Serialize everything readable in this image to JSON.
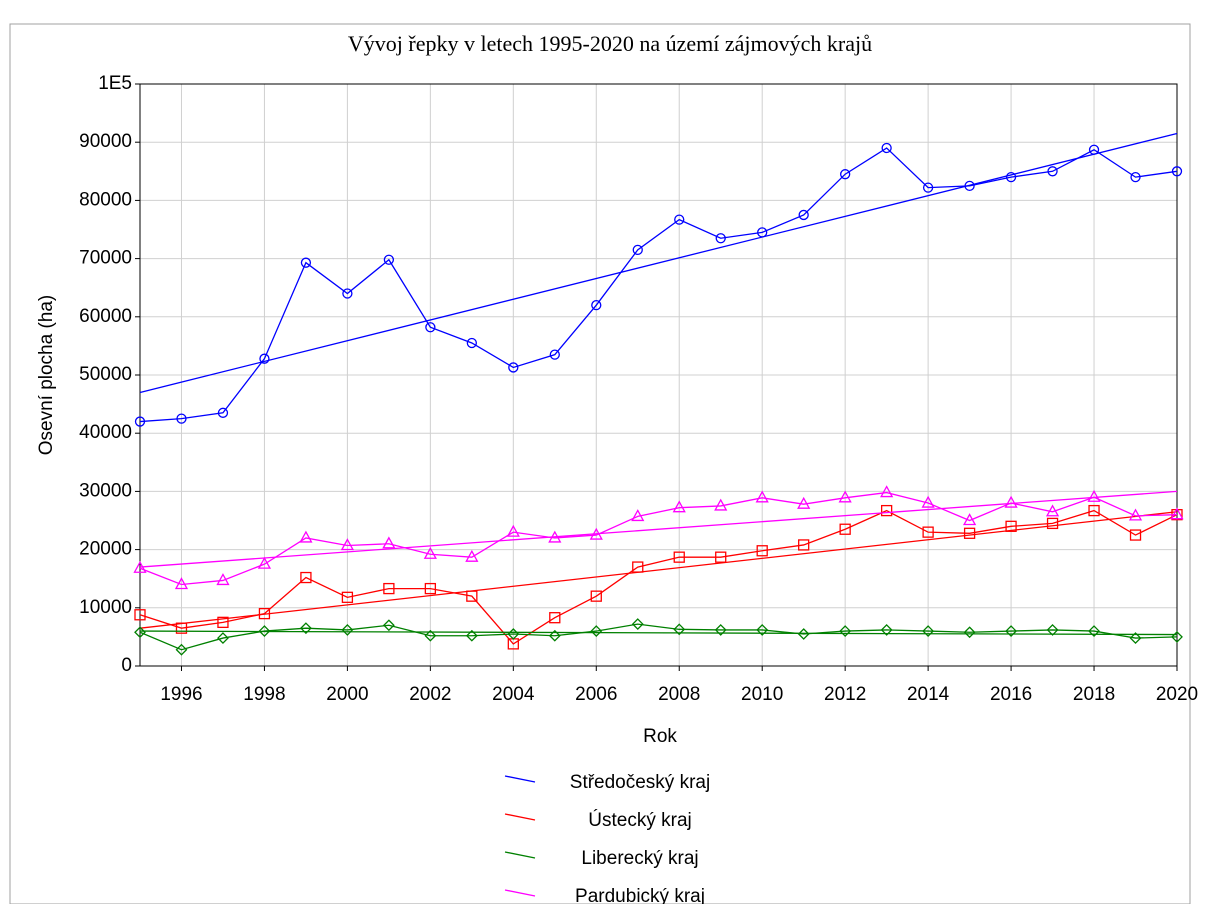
{
  "chart_data": {
    "type": "line",
    "title": "Vývoj řepky v letech 1995-2020 na území zájmových krajů",
    "xlabel": "Rok",
    "ylabel": "Osevní plocha (ha)",
    "x": [
      1995,
      1996,
      1997,
      1998,
      1999,
      2000,
      2001,
      2002,
      2003,
      2004,
      2005,
      2006,
      2007,
      2008,
      2009,
      2010,
      2011,
      2012,
      2013,
      2014,
      2015,
      2016,
      2017,
      2018,
      2019,
      2020
    ],
    "xlim": [
      1995,
      2020
    ],
    "xticks": [
      1996,
      1998,
      2000,
      2002,
      2004,
      2006,
      2008,
      2010,
      2012,
      2014,
      2016,
      2018,
      2020
    ],
    "ylim": [
      0,
      100000
    ],
    "yticks": [
      0,
      10000,
      20000,
      30000,
      40000,
      50000,
      60000,
      70000,
      80000,
      90000,
      {
        "value": 100000,
        "label": "1E5"
      }
    ],
    "grid": true,
    "legend": "bottom",
    "series": [
      {
        "name": "Středočeský kraj",
        "color": "#0000ff",
        "marker": "circle",
        "values": [
          42000,
          42500,
          43500,
          52800,
          69300,
          64000,
          69800,
          58200,
          55500,
          51300,
          53500,
          62000,
          71500,
          76700,
          73500,
          74500,
          77500,
          84500,
          89000,
          82200,
          82500,
          84000,
          85000,
          88700,
          84000,
          85000
        ],
        "trend": [
          47000,
          91500
        ]
      },
      {
        "name": "Ústecký kraj",
        "color": "#ff0000",
        "marker": "square",
        "values": [
          8800,
          6500,
          7500,
          9000,
          15200,
          11800,
          13300,
          13300,
          12000,
          3800,
          8300,
          12000,
          17000,
          18700,
          18700,
          19800,
          20800,
          23500,
          26700,
          23000,
          22800,
          24000,
          24500,
          26700,
          22500,
          26000
        ],
        "trend": [
          6500,
          26500
        ]
      },
      {
        "name": "Liberecký kraj",
        "color": "#008000",
        "marker": "diamond",
        "values": [
          5800,
          2800,
          4800,
          6000,
          6500,
          6200,
          7000,
          5200,
          5200,
          5500,
          5200,
          6000,
          7200,
          6300,
          6200,
          6200,
          5500,
          6000,
          6200,
          6000,
          5800,
          6000,
          6200,
          6000,
          4800,
          5000
        ],
        "trend": [
          6000,
          5400
        ]
      },
      {
        "name": "Pardubický kraj",
        "color": "#ff00ff",
        "marker": "triangle",
        "values": [
          16800,
          14000,
          14700,
          17500,
          22000,
          20700,
          21000,
          19200,
          18700,
          23000,
          22000,
          22500,
          25700,
          27200,
          27500,
          28900,
          27800,
          28900,
          29800,
          28000,
          25000,
          28000,
          26500,
          29000,
          25800,
          26000
        ],
        "trend": [
          17000,
          30000
        ]
      }
    ]
  }
}
